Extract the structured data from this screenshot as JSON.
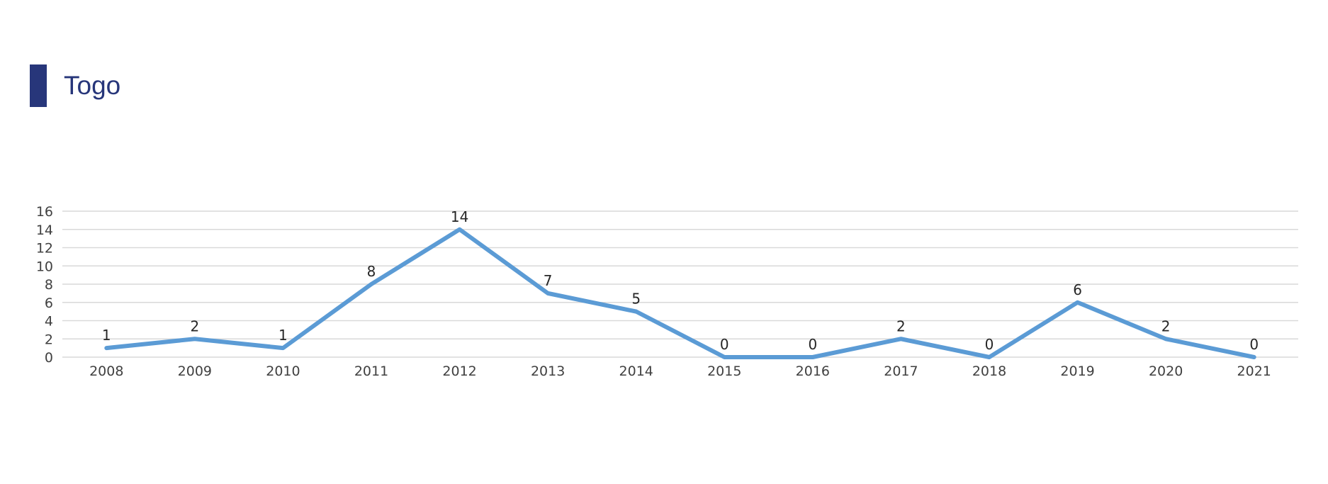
{
  "page": {
    "title": "Togo"
  },
  "colors": {
    "accent": "#27367a",
    "series": "#5b9bd5",
    "grid": "#d9d9d9"
  },
  "chart_data": {
    "type": "line",
    "title": "Togo",
    "xlabel": "",
    "ylabel": "",
    "x": [
      "2008",
      "2009",
      "2010",
      "2011",
      "2012",
      "2013",
      "2014",
      "2015",
      "2016",
      "2017",
      "2018",
      "2019",
      "2020",
      "2021"
    ],
    "series": [
      {
        "values": [
          1,
          2,
          1,
          8,
          14,
          7,
          5,
          0,
          0,
          2,
          0,
          6,
          2,
          0
        ]
      }
    ],
    "ylim": [
      0,
      16
    ],
    "yticks": [
      0,
      2,
      4,
      6,
      8,
      10,
      12,
      14,
      16
    ],
    "grid": true,
    "data_labels": true,
    "legend": "none"
  }
}
